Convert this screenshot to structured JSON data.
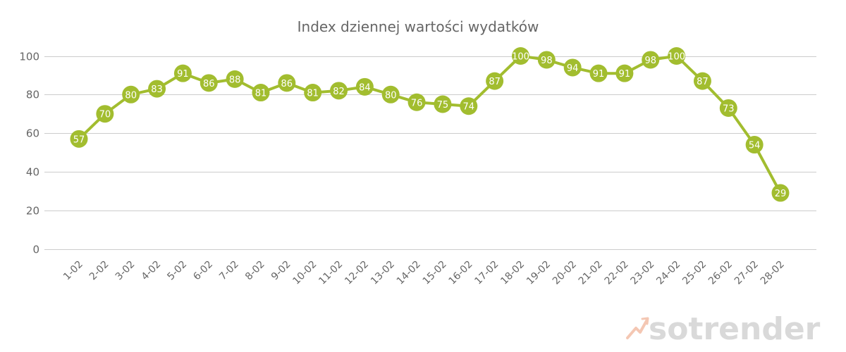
{
  "chart_data": {
    "type": "line",
    "title": "Index dziennej wartości wydatków",
    "xlabel": "",
    "ylabel": "",
    "categories": [
      "1-02",
      "2-02",
      "3-02",
      "4-02",
      "5-02",
      "6-02",
      "7-02",
      "8-02",
      "9-02",
      "10-02",
      "11-02",
      "12-02",
      "13-02",
      "14-02",
      "15-02",
      "16-02",
      "17-02",
      "18-02",
      "19-02",
      "20-02",
      "21-02",
      "22-02",
      "23-02",
      "24-02",
      "25-02",
      "26-02",
      "27-02",
      "28-02"
    ],
    "series": [
      {
        "values": [
          57,
          70,
          80,
          83,
          91,
          86,
          88,
          81,
          86,
          81,
          82,
          84,
          80,
          76,
          75,
          74,
          87,
          100,
          98,
          94,
          91,
          91,
          98,
          100,
          87,
          73,
          54,
          29
        ]
      }
    ],
    "ylim": [
      0,
      100
    ],
    "yticks": [
      0,
      20,
      40,
      60,
      80,
      100
    ],
    "grid": true,
    "legend": "none",
    "data_labels": true,
    "colors": {
      "line": "#a2bd2f",
      "point_label": "#ffffff",
      "grid": "#cccccc",
      "text": "#666666"
    }
  },
  "watermark": {
    "text": "sotrender",
    "icon": "sotrender-logo-icon"
  }
}
